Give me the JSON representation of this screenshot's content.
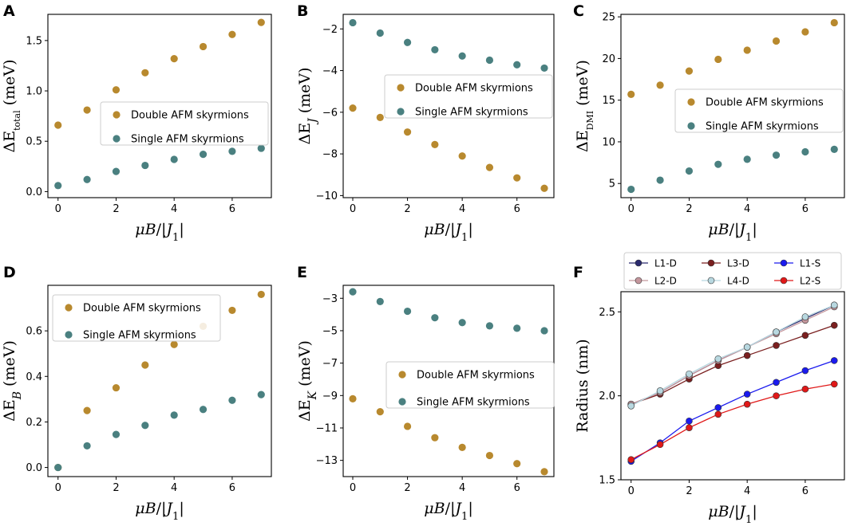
{
  "colors": {
    "double": "#b8892e",
    "single": "#4a8080"
  },
  "chart_data": [
    {
      "type": "scatter",
      "panel": "A",
      "ylabel": "ΔE_total (meV)",
      "xlabel": "μB/|J1|",
      "x": [
        0,
        1,
        2,
        3,
        4,
        5,
        6,
        7
      ],
      "xticks": [
        0,
        2,
        4,
        6
      ],
      "ylim": [
        -0.06,
        1.76
      ],
      "yticks": [
        "0.0",
        "0.5",
        "1.0",
        "1.5"
      ],
      "legend_position": "center-right",
      "series": [
        {
          "name": "Double AFM skyrmions",
          "values": [
            0.66,
            0.81,
            1.01,
            1.18,
            1.32,
            1.44,
            1.56,
            1.68
          ]
        },
        {
          "name": "Single AFM skyrmions",
          "values": [
            0.06,
            0.12,
            0.2,
            0.26,
            0.32,
            0.37,
            0.4,
            0.43
          ]
        }
      ]
    },
    {
      "type": "scatter",
      "panel": "B",
      "ylabel": "ΔE_J (meV)",
      "xlabel": "μB/|J1|",
      "x": [
        0,
        1,
        2,
        3,
        4,
        5,
        6,
        7
      ],
      "xticks": [
        0,
        2,
        4,
        6
      ],
      "ylim": [
        -10.1,
        -1.3
      ],
      "yticks": [
        "−10",
        "−8",
        "−6",
        "−4",
        "−2"
      ],
      "legend_position": "upper-right",
      "series": [
        {
          "name": "Double AFM skyrmions",
          "values": [
            -5.8,
            -6.25,
            -6.95,
            -7.55,
            -8.1,
            -8.65,
            -9.15,
            -9.65
          ]
        },
        {
          "name": "Single AFM skyrmions",
          "values": [
            -1.7,
            -2.2,
            -2.65,
            -3.0,
            -3.3,
            -3.5,
            -3.72,
            -3.88
          ]
        }
      ]
    },
    {
      "type": "scatter",
      "panel": "C",
      "ylabel": "ΔE_DMI (meV)",
      "xlabel": "μB/|J1|",
      "x": [
        0,
        1,
        2,
        3,
        4,
        5,
        6,
        7
      ],
      "xticks": [
        0,
        2,
        4,
        6
      ],
      "ylim": [
        3.3,
        25.3
      ],
      "yticks": [
        "5",
        "10",
        "15",
        "20",
        "25"
      ],
      "legend_position": "center-right",
      "series": [
        {
          "name": "Double AFM skyrmions",
          "values": [
            15.7,
            16.8,
            18.5,
            19.9,
            21.0,
            22.1,
            23.2,
            24.3
          ]
        },
        {
          "name": "Single AFM skyrmions",
          "values": [
            4.3,
            5.4,
            6.5,
            7.3,
            7.9,
            8.4,
            8.8,
            9.1
          ]
        }
      ]
    },
    {
      "type": "scatter",
      "panel": "D",
      "ylabel": "ΔE_B (meV)",
      "xlabel": "μB/|J1|",
      "x": [
        0,
        1,
        2,
        3,
        4,
        5,
        6,
        7
      ],
      "xticks": [
        0,
        2,
        4,
        6
      ],
      "ylim": [
        -0.04,
        0.8
      ],
      "yticks": [
        "0.0",
        "0.2",
        "0.4",
        "0.6"
      ],
      "legend_position": "upper-left",
      "series": [
        {
          "name": "Double AFM skyrmions",
          "values": [
            0.0,
            0.25,
            0.35,
            0.45,
            0.54,
            0.62,
            0.69,
            0.76
          ]
        },
        {
          "name": "Single AFM skyrmions",
          "values": [
            0.0,
            0.095,
            0.145,
            0.185,
            0.23,
            0.255,
            0.295,
            0.32
          ]
        }
      ]
    },
    {
      "type": "scatter",
      "panel": "E",
      "ylabel": "ΔE_K (meV)",
      "xlabel": "μB/|J1|",
      "x": [
        0,
        1,
        2,
        3,
        4,
        5,
        6,
        7
      ],
      "xticks": [
        0,
        2,
        4,
        6
      ],
      "ylim": [
        -14.0,
        -2.2
      ],
      "yticks": [
        "−13",
        "−11",
        "−9",
        "−7",
        "−5",
        "−3"
      ],
      "legend_position": "center-right",
      "series": [
        {
          "name": "Double AFM skyrmions",
          "values": [
            -9.2,
            -10.0,
            -10.9,
            -11.6,
            -12.2,
            -12.7,
            -13.2,
            -13.7
          ]
        },
        {
          "name": "Single AFM skyrmions",
          "values": [
            -2.6,
            -3.2,
            -3.8,
            -4.2,
            -4.5,
            -4.7,
            -4.85,
            -5.0
          ]
        }
      ]
    },
    {
      "type": "line",
      "panel": "F",
      "ylabel": "Radius (nm)",
      "xlabel": "μB/|J1|",
      "x": [
        0,
        1,
        2,
        3,
        4,
        5,
        6,
        7
      ],
      "xticks": [
        0,
        2,
        4,
        6
      ],
      "ylim": [
        1.5,
        2.62
      ],
      "yticks": [
        "1.5",
        "2.0",
        "2.5"
      ],
      "legend_position": "top-outside",
      "series": [
        {
          "name": "L1-D",
          "color": "#2a2a6e",
          "values": [
            1.95,
            2.02,
            2.12,
            2.21,
            2.29,
            2.38,
            2.46,
            2.54
          ]
        },
        {
          "name": "L3-D",
          "color": "#7a1f1f",
          "values": [
            1.95,
            2.01,
            2.1,
            2.18,
            2.24,
            2.3,
            2.36,
            2.42
          ]
        },
        {
          "name": "L1-S",
          "color": "#1a1aee",
          "values": [
            1.61,
            1.72,
            1.85,
            1.93,
            2.01,
            2.08,
            2.15,
            2.21
          ]
        },
        {
          "name": "L2-D",
          "color": "#c4969c",
          "values": [
            1.95,
            2.02,
            2.12,
            2.21,
            2.29,
            2.37,
            2.45,
            2.53
          ]
        },
        {
          "name": "L4-D",
          "color": "#b8d8e0",
          "values": [
            1.94,
            2.03,
            2.13,
            2.22,
            2.29,
            2.38,
            2.47,
            2.54
          ]
        },
        {
          "name": "L2-S",
          "color": "#e01818",
          "values": [
            1.62,
            1.71,
            1.81,
            1.89,
            1.95,
            2.0,
            2.04,
            2.07
          ]
        }
      ]
    }
  ]
}
